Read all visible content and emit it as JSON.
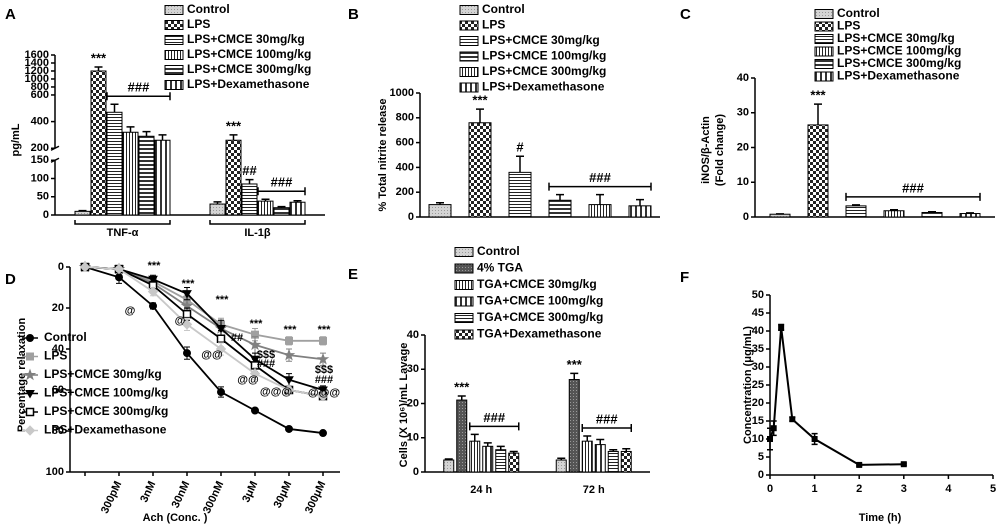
{
  "chart_data": [
    {
      "type": "bar",
      "panel": "A",
      "ylabel": "pg/mL",
      "categories": [
        "TNF-α",
        "IL-1β"
      ],
      "ylim": [
        0,
        1600
      ],
      "ysegments": [
        [
          0,
          150
        ],
        [
          200,
          600
        ],
        [
          600,
          1600
        ]
      ],
      "yticks": [
        0,
        50,
        100,
        150,
        200,
        400,
        600,
        800,
        1000,
        1200,
        1400,
        1600
      ],
      "series": [
        {
          "name": "Control",
          "pattern": "light",
          "values": [
            10,
            30
          ],
          "errors": [
            2,
            6
          ]
        },
        {
          "name": "LPS",
          "pattern": "checker",
          "values": [
            1200,
            260
          ],
          "errors": [
            100,
            40
          ]
        },
        {
          "name": "LPS+CMCE 30mg/kg",
          "pattern": "hlines",
          "values": [
            470,
            85
          ],
          "errors": [
            60,
            12
          ]
        },
        {
          "name": "LPS+CMCE 100mg/kg",
          "pattern": "vlines",
          "values": [
            320,
            38
          ],
          "errors": [
            40,
            5
          ]
        },
        {
          "name": "LPS+CMCE 300mg/kg",
          "pattern": "hbold",
          "values": [
            290,
            20
          ],
          "errors": [
            35,
            3
          ]
        },
        {
          "name": "LPS+Dexamethasone",
          "pattern": "vbold",
          "values": [
            260,
            35
          ],
          "errors": [
            40,
            4
          ]
        }
      ],
      "annotations": [
        "***",
        "###",
        "***",
        "##",
        "###"
      ]
    },
    {
      "type": "bar",
      "panel": "B",
      "ylabel": "% Total nitrite release",
      "ylim": [
        0,
        1000
      ],
      "yticks": [
        0,
        200,
        400,
        600,
        800,
        1000
      ],
      "series": [
        {
          "name": "Control",
          "pattern": "light",
          "values": [
            100
          ],
          "errors": [
            15
          ]
        },
        {
          "name": "LPS",
          "pattern": "checker",
          "values": [
            760
          ],
          "errors": [
            110
          ]
        },
        {
          "name": "LPS+CMCE 30mg/kg",
          "pattern": "hlines",
          "values": [
            360
          ],
          "errors": [
            130
          ]
        },
        {
          "name": "LPS+CMCE 100mg/kg",
          "pattern": "hbold",
          "values": [
            135
          ],
          "errors": [
            45
          ]
        },
        {
          "name": "LPS+CMCE 300mg/kg",
          "pattern": "vlines",
          "values": [
            100
          ],
          "errors": [
            80
          ]
        },
        {
          "name": "LPS+Dexamethasone",
          "pattern": "vbold",
          "values": [
            90
          ],
          "errors": [
            50
          ]
        }
      ],
      "annotations": [
        "***",
        "#",
        "###"
      ]
    },
    {
      "type": "bar",
      "panel": "C",
      "ylabel": [
        "iNOS/β-Actin",
        "(Fold change)"
      ],
      "ylim": [
        0,
        40
      ],
      "yticks": [
        0,
        10,
        20,
        30,
        40
      ],
      "series": [
        {
          "name": "Control",
          "pattern": "light",
          "values": [
            0.8
          ],
          "errors": [
            0.1
          ]
        },
        {
          "name": "LPS",
          "pattern": "checker",
          "values": [
            26.5
          ],
          "errors": [
            6
          ]
        },
        {
          "name": "LPS+CMCE 30mg/kg",
          "pattern": "hlines",
          "values": [
            3.2
          ],
          "errors": [
            0.3
          ]
        },
        {
          "name": "LPS+CMCE 100mg/kg",
          "pattern": "vlines",
          "values": [
            1.8
          ],
          "errors": [
            0.3
          ]
        },
        {
          "name": "LPS+CMCE 300mg/kg",
          "pattern": "hbold",
          "values": [
            1.3
          ],
          "errors": [
            0.2
          ]
        },
        {
          "name": "LPS+Dexamethasone",
          "pattern": "vbold",
          "values": [
            1.0
          ],
          "errors": [
            0.2
          ]
        }
      ],
      "annotations": [
        "***",
        "###"
      ]
    },
    {
      "type": "line",
      "panel": "D",
      "ylabel": "Percentage relaxation",
      "xlabel": "Ach (Conc. )",
      "categories": [
        null,
        "300pM",
        "3nM",
        "30nM",
        "300nM",
        "3μM",
        "30μM",
        "300μM"
      ],
      "ylim": [
        0,
        100
      ],
      "y_reversed": true,
      "yticks": [
        0,
        20,
        40,
        60,
        80,
        100
      ],
      "series": [
        {
          "name": "Control",
          "color": "#000000",
          "marker": "circle",
          "values": [
            0,
            5,
            19,
            42,
            61,
            70,
            79,
            81
          ],
          "errors": [
            0,
            3,
            1.5,
            3,
            2.5,
            1,
            1,
            1
          ]
        },
        {
          "name": "LPS",
          "color": "#a0a0a0",
          "marker": "square",
          "values": [
            0,
            1,
            7,
            16,
            28,
            33,
            36,
            36
          ],
          "errors": [
            0,
            1,
            1.5,
            2,
            3,
            3,
            2,
            2
          ]
        },
        {
          "name": "LPS+CMCE 30mg/kg",
          "color": "#808080",
          "marker": "star",
          "values": [
            0,
            1,
            8,
            19,
            30,
            38,
            43,
            45
          ],
          "errors": [
            0,
            1,
            2,
            3,
            4,
            4,
            3,
            3
          ]
        },
        {
          "name": "LPS+CMCE 100mg/kg",
          "color": "#000000",
          "marker": "triangle-down",
          "values": [
            0,
            1,
            6,
            13,
            30,
            45,
            55,
            60
          ],
          "errors": [
            0,
            1,
            2,
            3,
            4,
            3,
            3,
            2
          ]
        },
        {
          "name": "LPS+CMCE 300mg/kg",
          "color": "#000000",
          "marker": "square-open",
          "values": [
            0,
            1,
            9,
            23,
            35,
            48,
            60,
            63
          ],
          "errors": [
            0,
            1,
            2,
            3,
            4,
            3,
            2,
            2
          ]
        },
        {
          "name": "LPS+Dexamethasone",
          "color": "#c8c8c8",
          "marker": "diamond",
          "values": [
            0,
            1,
            12,
            28,
            40,
            52,
            60,
            63
          ],
          "errors": [
            0,
            1,
            2,
            3,
            3,
            3,
            2,
            2
          ]
        }
      ],
      "annotations": [
        "***",
        "***",
        "***",
        "***",
        "***",
        "***",
        "@",
        "@",
        "@@",
        "##",
        "$$$",
        "###",
        "@@",
        "@@@",
        "$$$",
        "###",
        "@@@"
      ]
    },
    {
      "type": "bar",
      "panel": "E",
      "ylabel": "Cells (X 10⁶)/mL Lavage",
      "categories": [
        "24 h",
        "72 h"
      ],
      "ylim": [
        0,
        40
      ],
      "yticks": [
        0,
        10,
        20,
        30,
        40
      ],
      "series": [
        {
          "name": "Control",
          "pattern": "light",
          "values": [
            3.5,
            3.5
          ],
          "errors": [
            0.3,
            0.5
          ]
        },
        {
          "name": "4% TGA",
          "pattern": "dark",
          "values": [
            21,
            27
          ],
          "errors": [
            1.2,
            1.8
          ]
        },
        {
          "name": "TGA+CMCE 30mg/kg",
          "pattern": "vlines",
          "values": [
            9,
            9
          ],
          "errors": [
            2,
            1.5
          ]
        },
        {
          "name": "TGA+CMCE 100mg/kg",
          "pattern": "vbold",
          "values": [
            7.5,
            8
          ],
          "errors": [
            1,
            1.5
          ]
        },
        {
          "name": "TGA+CMCE 300mg/kg",
          "pattern": "hlines",
          "values": [
            6.5,
            6
          ],
          "errors": [
            1,
            0.5
          ]
        },
        {
          "name": "TGA+Dexamethasone",
          "pattern": "checker",
          "values": [
            5.5,
            6
          ],
          "errors": [
            0.5,
            0.8
          ]
        }
      ],
      "annotations": [
        "***",
        "###",
        "***",
        "###"
      ]
    },
    {
      "type": "scatter-line",
      "panel": "F",
      "ylabel": "Concentration (μg/mL)",
      "xlabel": "Time (h)",
      "x": [
        0,
        0.083,
        0.25,
        0.5,
        1,
        2,
        3
      ],
      "values": [
        10,
        13,
        41,
        15.5,
        10,
        2.8,
        3
      ],
      "errors": [
        3,
        2,
        0.8,
        0.5,
        1.5,
        0.3,
        0.3
      ],
      "color": "#000000",
      "xlim": [
        0,
        5
      ],
      "xticks": [
        0,
        1,
        2,
        3,
        4,
        5
      ],
      "ylim": [
        0,
        50
      ],
      "yticks": [
        0,
        5,
        10,
        15,
        20,
        25,
        30,
        35,
        40,
        45,
        50
      ]
    }
  ]
}
